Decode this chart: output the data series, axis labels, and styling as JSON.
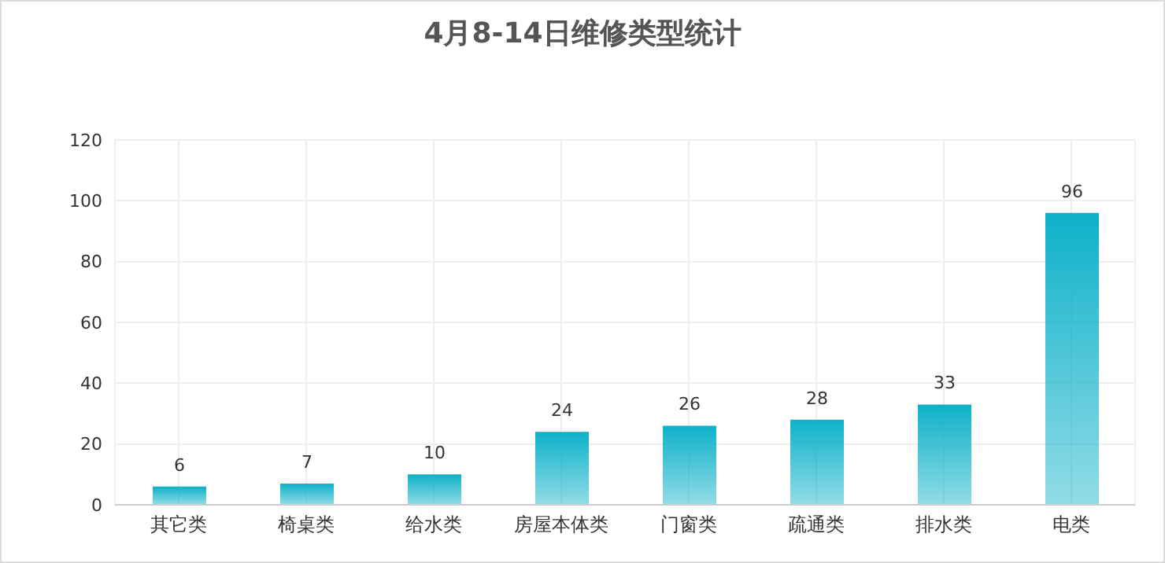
{
  "chart_data": {
    "type": "bar",
    "title": "4月8-14日维修类型统计",
    "categories": [
      "其它类",
      "椅桌类",
      "给水类",
      "房屋本体类",
      "门窗类",
      "疏通类",
      "排水类",
      "电类"
    ],
    "values": [
      6,
      7,
      10,
      24,
      26,
      28,
      33,
      96
    ],
    "color": "#0db1c9",
    "ylim": [
      0,
      120
    ],
    "yticks": [
      0,
      20,
      40,
      60,
      80,
      100,
      120
    ],
    "grid": true,
    "data_labels": true
  }
}
